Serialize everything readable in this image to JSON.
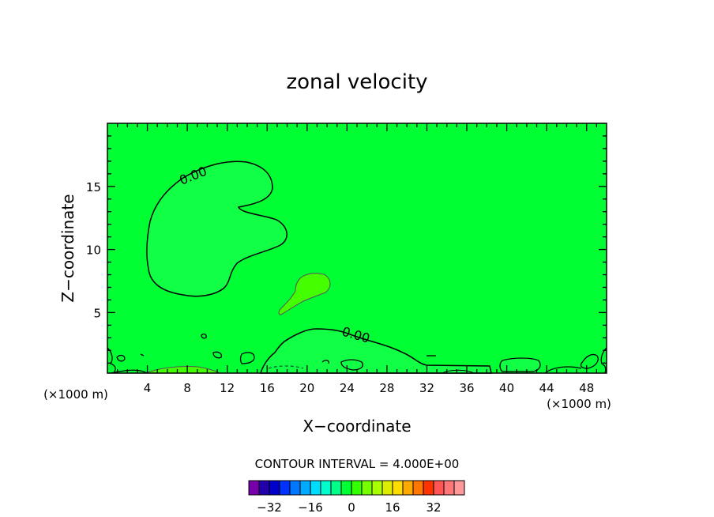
{
  "chart_data": {
    "type": "contour",
    "title": "zonal velocity",
    "xlabel": "X−coordinate",
    "ylabel": "Z−coordinate",
    "x_unit_left": "(×1000 m)",
    "x_unit_right": "(×1000 m)",
    "xlim": [
      0,
      50
    ],
    "ylim": [
      0.2,
      20
    ],
    "x_ticks": [
      4,
      8,
      12,
      16,
      20,
      24,
      28,
      32,
      36,
      40,
      44,
      48
    ],
    "x_tick_labels": [
      "4",
      "8",
      "12",
      "16",
      "20",
      "24",
      "28",
      "32",
      "36",
      "40",
      "44",
      "48"
    ],
    "y_ticks": [
      5,
      10,
      15
    ],
    "y_tick_labels": [
      "5",
      "10",
      "15"
    ],
    "background_color": "#00ff33",
    "contour_interval_label": "CONTOUR INTERVAL = 4.000E+00",
    "contour_labels": [
      "0.00",
      "0.00"
    ],
    "colorbar": {
      "colors": [
        "#7700aa",
        "#2200aa",
        "#0000cc",
        "#0033ff",
        "#0077ff",
        "#00aaff",
        "#00ddff",
        "#00ffcc",
        "#00ff88",
        "#00ff33",
        "#33ff00",
        "#77ff00",
        "#aaff00",
        "#dded00",
        "#ffdd00",
        "#ffaa00",
        "#ff7700",
        "#ff3300",
        "#ff5555",
        "#ff7777",
        "#ff9999"
      ],
      "tick_labels": [
        "−32",
        "−16",
        "0",
        "16",
        "32"
      ],
      "tick_values": [
        -32,
        -16,
        0,
        16,
        32
      ],
      "range": [
        -40,
        44
      ]
    }
  }
}
